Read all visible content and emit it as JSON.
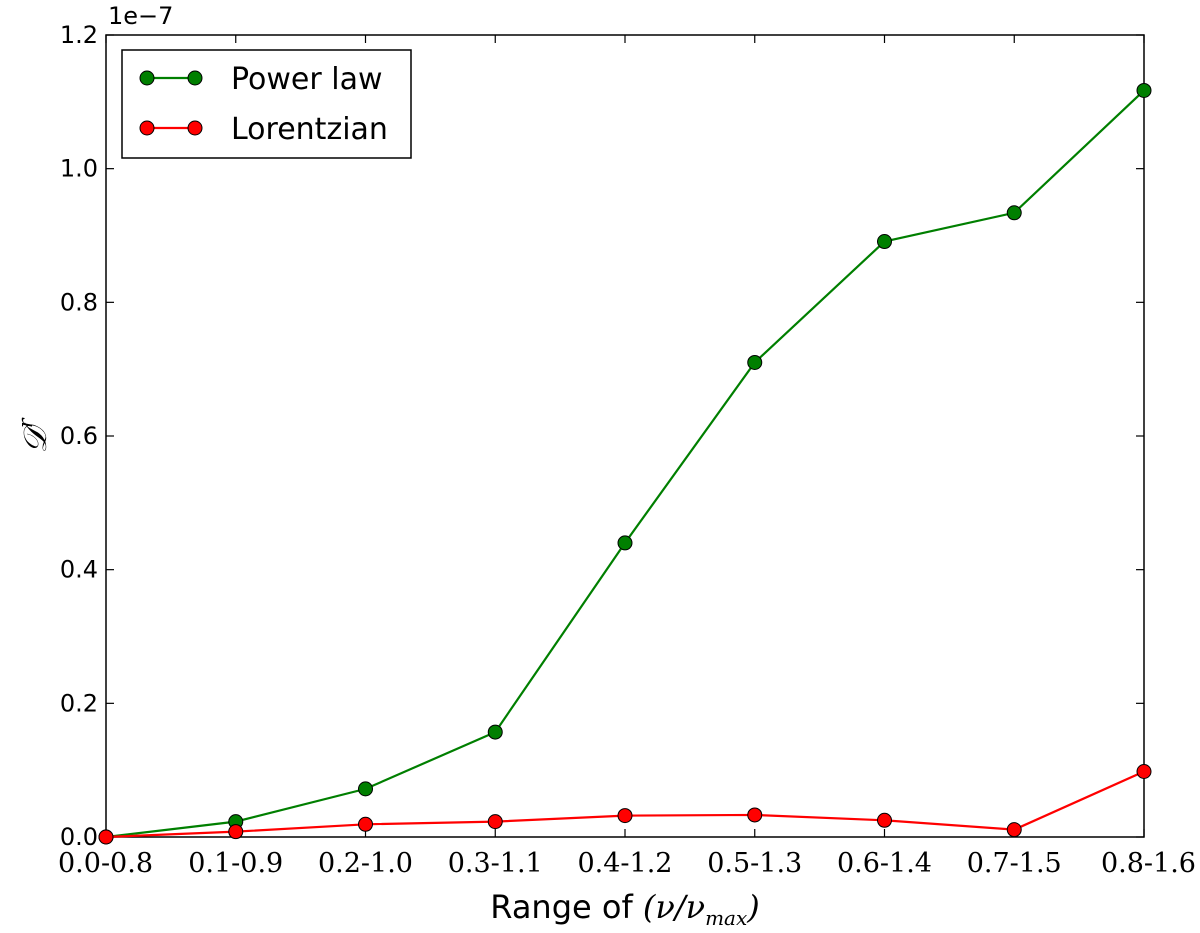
{
  "chart_data": {
    "type": "line",
    "categories": [
      "0.0-0.8",
      "0.1-0.9",
      "0.2-1.0",
      "0.3-1.1",
      "0.4-1.2",
      "0.5-1.3",
      "0.6-1.4",
      "0.7-1.5",
      "0.8-1.6"
    ],
    "series": [
      {
        "name": "Power law",
        "color": "#007f00",
        "values": [
          0.0,
          2.3e-09,
          7.2e-09,
          1.57e-08,
          4.4e-08,
          7.1e-08,
          8.91e-08,
          9.34e-08,
          1.117e-07
        ]
      },
      {
        "name": "Lorentzian",
        "color": "#ff0000",
        "values": [
          0.0,
          8e-10,
          1.9e-09,
          2.3e-09,
          3.2e-09,
          3.3e-09,
          2.5e-09,
          1.1e-09,
          9.8e-09
        ]
      }
    ],
    "ylim": [
      0,
      1.2e-07
    ],
    "yticks": [
      "0.0",
      "0.2",
      "0.4",
      "0.6",
      "0.8",
      "1.0",
      "1.2"
    ],
    "y_offset_label": "1e−7",
    "xlabel_prefix": "Range of",
    "xlabel_math": "(ν/ν",
    "xlabel_sub": "max",
    "xlabel_close": ")",
    "ylabel_math": "𝒟",
    "ylabel_sup": "r",
    "legend_position": "upper-left",
    "grid": false
  }
}
